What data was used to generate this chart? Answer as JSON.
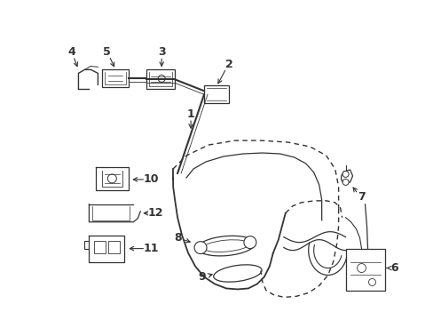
{
  "bg_color": "#ffffff",
  "lc": "#333333",
  "lw": 1.0,
  "fig_w": 4.89,
  "fig_h": 3.6,
  "dpi": 100
}
